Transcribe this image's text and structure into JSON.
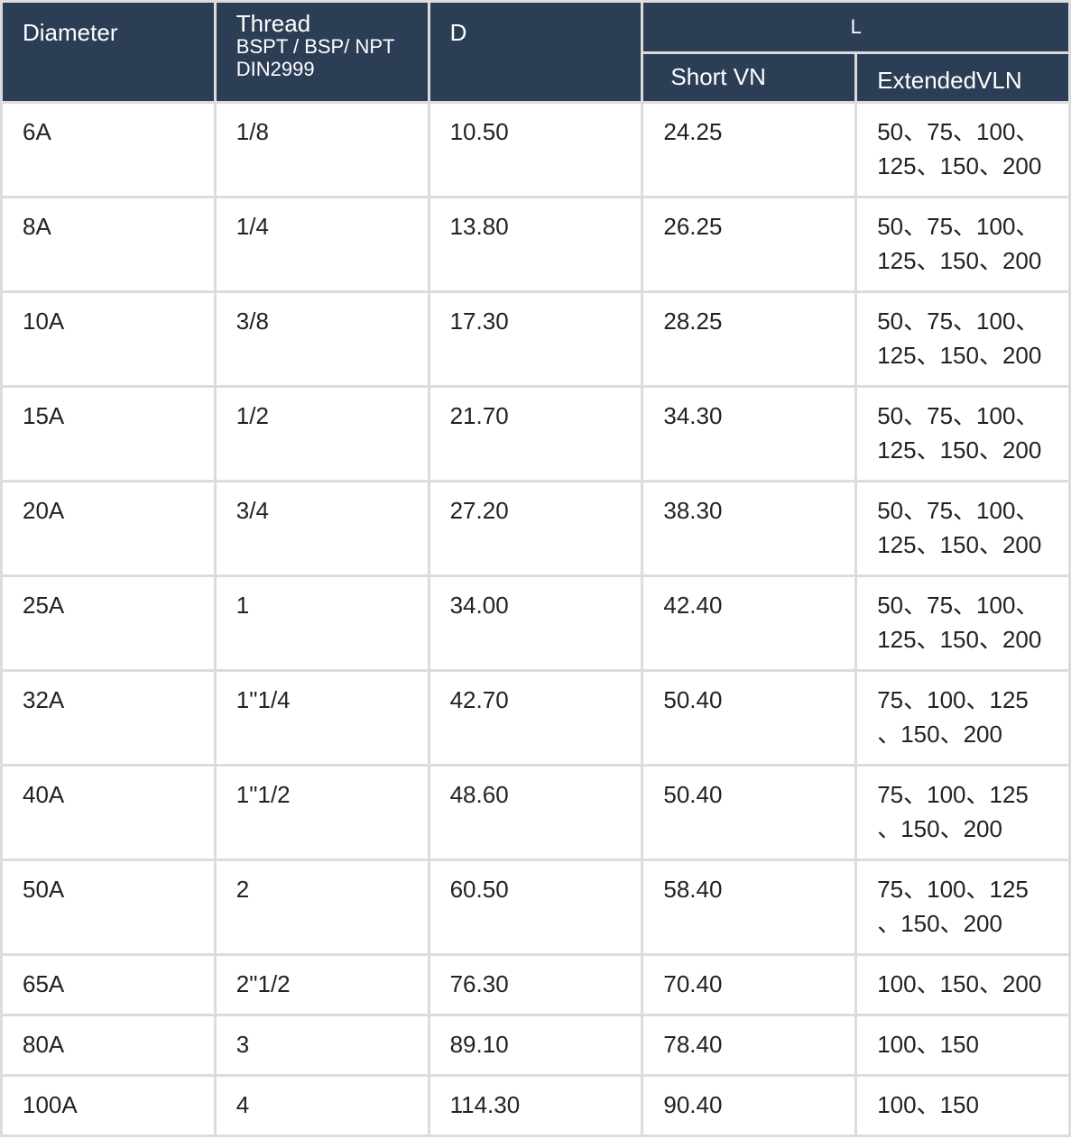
{
  "header": {
    "diameter": "Diameter",
    "thread": [
      "Thread",
      "BSPT / BSP/ NPT",
      "DIN2999"
    ],
    "d": "D",
    "l": "L",
    "short": "Short VN",
    "extended": "ExtendedVLN"
  },
  "rows": [
    [
      "6A",
      "1/8",
      "10.50",
      "24.25",
      [
        "50、75、100、",
        "125、150、200"
      ]
    ],
    [
      "8A",
      "1/4",
      "13.80",
      "26.25",
      [
        "50、75、100、",
        "125、150、200"
      ]
    ],
    [
      "10A",
      "3/8",
      "17.30",
      "28.25",
      [
        "50、75、100、",
        "125、150、200"
      ]
    ],
    [
      "15A",
      "1/2",
      "21.70",
      "34.30",
      [
        "50、75、100、",
        "125、150、200"
      ]
    ],
    [
      "20A",
      "3/4",
      "27.20",
      "38.30",
      [
        "50、75、100、",
        "125、150、200"
      ]
    ],
    [
      "25A",
      "1",
      "34.00",
      "42.40",
      [
        "50、75、100、",
        "125、150、200"
      ]
    ],
    [
      "32A",
      "1\"1/4",
      "42.70",
      "50.40",
      [
        "75、100、125",
        "、150、200"
      ]
    ],
    [
      "40A",
      "1\"1/2",
      "48.60",
      "50.40",
      [
        "75、100、125",
        "、150、200"
      ]
    ],
    [
      "50A",
      "2",
      "60.50",
      "58.40",
      [
        "75、100、125",
        "、150、200"
      ]
    ],
    [
      "65A",
      "2\"1/2",
      "76.30",
      "70.40",
      [
        "100、150、200"
      ]
    ],
    [
      "80A",
      "3",
      "89.10",
      "78.40",
      [
        "100、150"
      ]
    ],
    [
      "100A",
      "4",
      "114.30",
      "90.40",
      [
        "100、150"
      ]
    ]
  ]
}
